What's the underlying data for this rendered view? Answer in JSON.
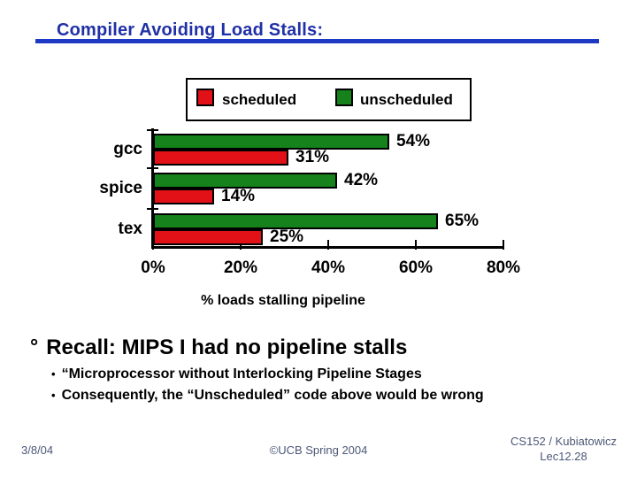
{
  "title": "Compiler Avoiding Load Stalls:",
  "colors": {
    "title": "#2030a6",
    "title_rule": "#1e3ac4",
    "scheduled": "#e11117",
    "unscheduled": "#15821b",
    "footer_text": "#4d5878",
    "axis": "#000000"
  },
  "chart_data": {
    "type": "bar",
    "orientation": "horizontal",
    "categories": [
      "gcc",
      "spice",
      "tex"
    ],
    "series": [
      {
        "name": "unscheduled",
        "color": "#15821b",
        "values": [
          54,
          42,
          65
        ],
        "labels": [
          "54%",
          "42%",
          "65%"
        ]
      },
      {
        "name": "scheduled",
        "color": "#e11117",
        "values": [
          31,
          14,
          25
        ],
        "labels": [
          "31%",
          "14%",
          "25%"
        ]
      }
    ],
    "legend": [
      "scheduled",
      "unscheduled"
    ],
    "legend_position": "top",
    "xlabel": "% loads stalling pipeline",
    "xlim": [
      0,
      80
    ],
    "xticks": [
      0,
      20,
      40,
      60,
      80
    ],
    "xtick_labels": [
      "0%",
      "20%",
      "40%",
      "60%",
      "80%"
    ],
    "grid": false
  },
  "bullets": {
    "main_bullet": "°",
    "main": "Recall: MIPS I had no pipeline stalls",
    "sub": [
      {
        "bullet": "•",
        "text": "“Microprocessor without Interlocking Pipeline Stages"
      },
      {
        "bullet": "•",
        "text": "Consequently, the “Unscheduled” code above would be wrong"
      }
    ]
  },
  "footer": {
    "date": "3/8/04",
    "copyright": "©UCB Spring 2004",
    "course": "CS152 / Kubiatowicz",
    "lecture": "Lec12.28"
  }
}
